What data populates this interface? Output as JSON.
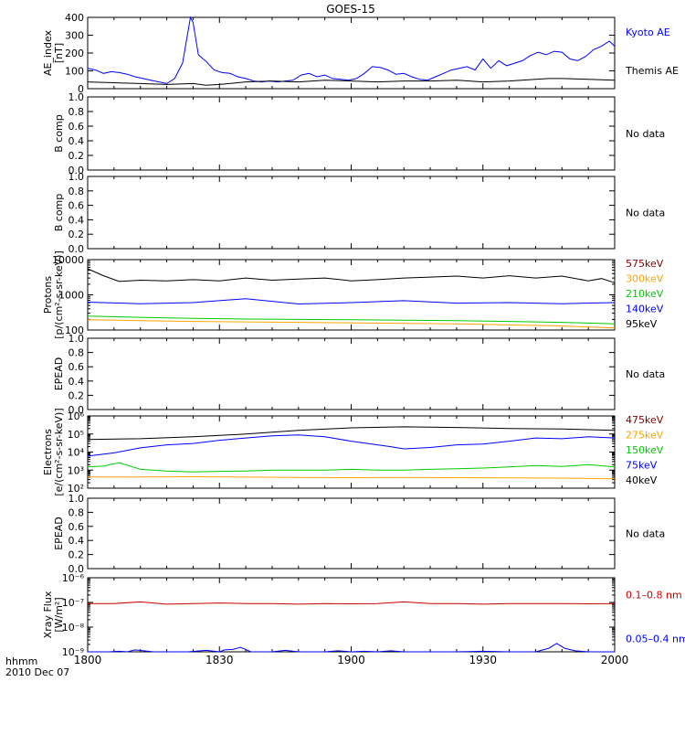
{
  "title": "GOES-15",
  "x_axis": {
    "ticks": [
      "1800",
      "1830",
      "1900",
      "1930",
      "2000"
    ],
    "corner_line1": "hhmm",
    "corner_line2": "2010 Dec 07"
  },
  "no_data_label": "No data",
  "chart_data": [
    {
      "type": "line",
      "ylabel": [
        "AE_index",
        "[nT]"
      ],
      "yticks": [
        "0",
        "100",
        "200",
        "300",
        "400"
      ],
      "ylim": [
        0,
        420
      ],
      "series": [
        {
          "name": "Kyoto AE",
          "color": "#0000ff",
          "x": [
            0,
            3,
            6,
            9,
            12,
            15,
            18,
            21,
            24,
            27,
            30,
            33,
            36,
            39,
            40,
            42,
            45,
            48,
            51,
            54,
            57,
            60,
            63,
            66,
            69,
            72,
            75,
            78,
            81,
            84,
            87,
            90,
            93,
            96,
            99,
            102,
            105,
            108,
            111,
            114,
            117,
            120,
            123,
            126,
            129,
            132,
            135,
            138,
            141,
            144,
            147,
            150,
            153,
            156,
            159,
            162,
            165,
            168,
            171,
            174,
            177,
            180,
            183,
            186,
            189,
            192,
            195,
            198,
            200
          ],
          "y": [
            120,
            110,
            90,
            100,
            95,
            85,
            70,
            60,
            50,
            40,
            30,
            60,
            150,
            420,
            390,
            200,
            160,
            110,
            95,
            90,
            70,
            60,
            45,
            40,
            45,
            40,
            45,
            50,
            80,
            90,
            70,
            80,
            60,
            55,
            50,
            60,
            90,
            130,
            125,
            110,
            85,
            90,
            70,
            55,
            50,
            70,
            90,
            110,
            120,
            130,
            110,
            175,
            120,
            165,
            135,
            150,
            165,
            195,
            215,
            200,
            220,
            215,
            175,
            165,
            190,
            230,
            250,
            280,
            250
          ]
        },
        {
          "name": "Themis AE",
          "color": "#000000",
          "x": [
            0,
            10,
            20,
            30,
            40,
            45,
            50,
            60,
            70,
            80,
            90,
            100,
            110,
            120,
            130,
            140,
            150,
            160,
            170,
            175,
            180,
            190,
            200
          ],
          "y": [
            40,
            35,
            30,
            25,
            30,
            20,
            25,
            40,
            45,
            40,
            50,
            45,
            40,
            45,
            45,
            50,
            40,
            45,
            55,
            60,
            60,
            55,
            50
          ]
        }
      ]
    },
    {
      "type": "line",
      "ylabel": [
        "B comp"
      ],
      "yticks": [
        "0.0",
        "0.2",
        "0.4",
        "0.6",
        "0.8",
        "1.0"
      ],
      "ylim": [
        0,
        1
      ],
      "series": []
    },
    {
      "type": "line",
      "ylabel": [
        "B comp"
      ],
      "yticks": [
        "0.0",
        "0.2",
        "0.4",
        "0.6",
        "0.8",
        "1.0"
      ],
      "ylim": [
        0,
        1
      ],
      "series": []
    },
    {
      "type": "line",
      "log_y": true,
      "ylabel": [
        "Protons",
        "[p/(cm²-s-sr-keV)]"
      ],
      "yticks": [
        "100",
        "1000",
        "10000"
      ],
      "ylim": [
        100,
        10000
      ],
      "series": [
        {
          "name": "575keV",
          "color": "#800000",
          "x": [
            0,
            100,
            200
          ],
          "y": [
            null,
            null,
            null
          ]
        },
        {
          "name": "300keV",
          "color": "#ffa500",
          "x": [
            0,
            20,
            40,
            60,
            80,
            100,
            120,
            140,
            160,
            180,
            200
          ],
          "y": [
            195,
            185,
            175,
            170,
            165,
            160,
            155,
            150,
            140,
            130,
            115
          ]
        },
        {
          "name": "210keV",
          "color": "#00cc00",
          "x": [
            0,
            20,
            40,
            60,
            80,
            100,
            120,
            140,
            160,
            180,
            200
          ],
          "y": [
            250,
            230,
            215,
            205,
            200,
            195,
            190,
            185,
            175,
            165,
            150
          ]
        },
        {
          "name": "140keV",
          "color": "#0000ff",
          "x": [
            0,
            20,
            40,
            60,
            80,
            100,
            120,
            140,
            160,
            180,
            200
          ],
          "y": [
            620,
            560,
            600,
            780,
            550,
            600,
            680,
            580,
            600,
            560,
            600
          ]
        },
        {
          "name": "95keV",
          "color": "#000000",
          "x": [
            0,
            6,
            12,
            20,
            30,
            40,
            50,
            60,
            70,
            80,
            90,
            100,
            110,
            120,
            130,
            140,
            150,
            160,
            170,
            180,
            190,
            195,
            200
          ],
          "y": [
            5500,
            3500,
            2400,
            2600,
            2500,
            2700,
            2500,
            3000,
            2600,
            2800,
            3000,
            2500,
            2700,
            3000,
            3200,
            3400,
            3000,
            3500,
            3000,
            3400,
            2500,
            2900,
            2200
          ]
        }
      ]
    },
    {
      "type": "line",
      "ylabel": [
        "EPEAD"
      ],
      "yticks": [
        "0.0",
        "0.2",
        "0.4",
        "0.6",
        "0.8",
        "1.0"
      ],
      "ylim": [
        0,
        1
      ],
      "series": []
    },
    {
      "type": "line",
      "log_y": true,
      "ylabel": [
        "Electrons",
        "[e/(cm²-s-sr-keV)]"
      ],
      "yticks": [
        "10²",
        "10³",
        "10⁴",
        "10⁵",
        "10⁶"
      ],
      "ylim": [
        100,
        1000000
      ],
      "series": [
        {
          "name": "475keV",
          "color": "#800000",
          "x": [
            0,
            100,
            200
          ],
          "y": [
            null,
            null,
            null
          ]
        },
        {
          "name": "275keV",
          "color": "#ffa500",
          "x": [
            0,
            20,
            40,
            60,
            80,
            100,
            120,
            140,
            160,
            180,
            200
          ],
          "y": [
            420,
            420,
            430,
            410,
            390,
            380,
            390,
            380,
            370,
            360,
            330
          ]
        },
        {
          "name": "150keV",
          "color": "#00cc00",
          "x": [
            0,
            6,
            12,
            20,
            30,
            40,
            50,
            60,
            70,
            80,
            90,
            100,
            110,
            120,
            130,
            140,
            150,
            160,
            170,
            180,
            190,
            200
          ],
          "y": [
            1500,
            1700,
            2600,
            1100,
            900,
            800,
            850,
            900,
            1000,
            1000,
            1000,
            1100,
            1000,
            1000,
            1100,
            1200,
            1300,
            1500,
            1800,
            1600,
            2000,
            1500
          ]
        },
        {
          "name": "75keV",
          "color": "#0000ff",
          "x": [
            0,
            10,
            20,
            30,
            40,
            50,
            60,
            70,
            80,
            90,
            100,
            110,
            115,
            120,
            130,
            140,
            150,
            160,
            170,
            180,
            190,
            200
          ],
          "y": [
            6000,
            9000,
            17000,
            25000,
            30000,
            45000,
            60000,
            80000,
            90000,
            70000,
            40000,
            25000,
            20000,
            15000,
            18000,
            25000,
            28000,
            40000,
            60000,
            55000,
            70000,
            60000
          ]
        },
        {
          "name": "40keV",
          "color": "#000000",
          "x": [
            0,
            20,
            40,
            60,
            80,
            100,
            120,
            140,
            160,
            180,
            200
          ],
          "y": [
            50000,
            55000,
            70000,
            100000,
            160000,
            220000,
            250000,
            230000,
            200000,
            190000,
            160000
          ]
        }
      ]
    },
    {
      "type": "line",
      "ylabel": [
        "EPEAD"
      ],
      "yticks": [
        "0.0",
        "0.2",
        "0.4",
        "0.6",
        "0.8",
        "1.0"
      ],
      "ylim": [
        0,
        1
      ],
      "series": []
    },
    {
      "type": "line",
      "log_y": true,
      "ylabel": [
        "Xray Flux",
        "[W/m²]"
      ],
      "yticks": [
        "10⁻⁹",
        "10⁻⁸",
        "10⁻⁷",
        "10⁻⁶"
      ],
      "ylim": [
        1e-09,
        1e-06
      ],
      "series": [
        {
          "name": "0.1–0.8 nm",
          "color": "#cc0000",
          "x": [
            0,
            10,
            20,
            30,
            40,
            50,
            60,
            70,
            80,
            90,
            100,
            110,
            120,
            130,
            140,
            150,
            160,
            170,
            180,
            190,
            200
          ],
          "y": [
            9e-08,
            9e-08,
            1.05e-07,
            8.5e-08,
            9e-08,
            9.5e-08,
            9e-08,
            9e-08,
            8.5e-08,
            9e-08,
            8.8e-08,
            9e-08,
            1.05e-07,
            9e-08,
            9e-08,
            8.5e-08,
            9e-08,
            9e-08,
            9e-08,
            8.8e-08,
            9e-08
          ]
        },
        {
          "name": "0.05–0.4 nm",
          "color": "#0000ff",
          "x": [
            0,
            8,
            12,
            15,
            18,
            25,
            32,
            38,
            45,
            50,
            52,
            55,
            58,
            62,
            70,
            75,
            80,
            90,
            95,
            100,
            105,
            110,
            115,
            120,
            130,
            140,
            150,
            160,
            170,
            175,
            178,
            181,
            185,
            190,
            200
          ],
          "y": [
            1e-09,
            1e-09,
            1.05e-09,
            1e-09,
            1.2e-09,
            1e-09,
            1e-09,
            1e-09,
            1.15e-09,
            1e-09,
            1.2e-09,
            1.25e-09,
            1.5e-09,
            1e-09,
            1e-09,
            1.15e-09,
            1e-09,
            1e-09,
            1.1e-09,
            1e-09,
            1.05e-09,
            1e-09,
            1.1e-09,
            1e-09,
            1e-09,
            1e-09,
            1.05e-09,
            1e-09,
            1e-09,
            1.4e-09,
            2.2e-09,
            1.4e-09,
            1.1e-09,
            1e-09,
            1e-09
          ]
        }
      ]
    }
  ]
}
